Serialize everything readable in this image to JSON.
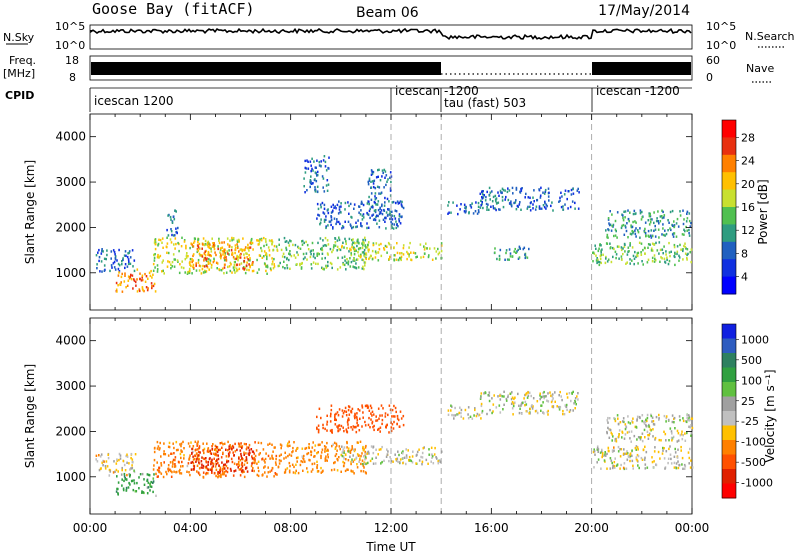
{
  "header": {
    "station": "Goose Bay (fitACF)",
    "beam": "Beam 06",
    "date": "17/May/2014"
  },
  "strip_nsky": {
    "label": "N.Sky",
    "right_label": "N.Search",
    "left_ticks": [
      "10^5",
      "10^0"
    ],
    "right_ticks": [
      "10^5",
      "10^0"
    ]
  },
  "strip_freq": {
    "label_line1": "Freq.",
    "label_line2": "[MHz]",
    "left_ticks": [
      "18",
      "8"
    ],
    "right_ticks": [
      "60",
      "0"
    ],
    "right_label": "Nave"
  },
  "cpid": {
    "label": "CPID",
    "segments": [
      {
        "text": "icescan 1200",
        "start": 0
      },
      {
        "text": "icescan -1200",
        "start": 12
      },
      {
        "text": "tau (fast) 503",
        "start": 14
      },
      {
        "text": "icescan -1200",
        "start": 20
      }
    ]
  },
  "chart_data": [
    {
      "type": "heatmap",
      "panel": "power",
      "ylabel": "Slant Range [km]",
      "yticks": [
        "4000",
        "3000",
        "2000",
        "1000"
      ],
      "ylim": [
        180,
        4500
      ],
      "xlim": [
        0,
        24
      ],
      "colorbar": {
        "label": "Power [dB]",
        "ticks": [
          "28",
          "24",
          "20",
          "16",
          "12",
          "8",
          "4"
        ],
        "colors": [
          "#ff0000",
          "#e83010",
          "#ff8000",
          "#ffc000",
          "#c8e030",
          "#50c050",
          "#2e9c80",
          "#2060c0",
          "#1030e0",
          "#0000ff"
        ]
      },
      "dashed_times": [
        12,
        14,
        20
      ],
      "regions": [
        {
          "t0": 0.2,
          "t1": 1.8,
          "r0": 1050,
          "r1": 1550,
          "level": 8
        },
        {
          "t0": 1.0,
          "t1": 2.6,
          "r0": 600,
          "r1": 1100,
          "level": 22
        },
        {
          "t0": 2.5,
          "t1": 7.5,
          "r0": 1000,
          "r1": 1800,
          "level": 18
        },
        {
          "t0": 4.0,
          "t1": 6.5,
          "r0": 1100,
          "r1": 1700,
          "level": 22
        },
        {
          "t0": 7.5,
          "t1": 11.0,
          "r0": 1100,
          "r1": 1800,
          "level": 14
        },
        {
          "t0": 9.0,
          "t1": 12.5,
          "r0": 2000,
          "r1": 2600,
          "level": 8
        },
        {
          "t0": 10.0,
          "t1": 14.0,
          "r0": 1300,
          "r1": 1700,
          "level": 16
        },
        {
          "t0": 14.2,
          "t1": 15.6,
          "r0": 2300,
          "r1": 2600,
          "level": 6
        },
        {
          "t0": 15.5,
          "t1": 19.5,
          "r0": 2400,
          "r1": 2900,
          "level": 6
        },
        {
          "t0": 16.0,
          "t1": 17.5,
          "r0": 1300,
          "r1": 1600,
          "level": 10
        },
        {
          "t0": 20.0,
          "t1": 24.0,
          "r0": 1200,
          "r1": 1700,
          "level": 12
        },
        {
          "t0": 20.5,
          "t1": 24.0,
          "r0": 1800,
          "r1": 2400,
          "level": 10
        },
        {
          "t0": 3.0,
          "t1": 3.5,
          "r0": 1800,
          "r1": 2400,
          "level": 6
        },
        {
          "t0": 8.5,
          "t1": 9.5,
          "r0": 2800,
          "r1": 3600,
          "level": 6
        },
        {
          "t0": 11.0,
          "t1": 12.0,
          "r0": 2200,
          "r1": 3300,
          "level": 6
        }
      ]
    },
    {
      "type": "heatmap",
      "panel": "velocity",
      "ylabel": "Slant Range [km]",
      "yticks": [
        "4000",
        "3000",
        "2000",
        "1000"
      ],
      "ylim": [
        180,
        4500
      ],
      "xlim": [
        0,
        24
      ],
      "xticks": [
        "00:00",
        "04:00",
        "08:00",
        "12:00",
        "16:00",
        "20:00",
        "00:00"
      ],
      "xlabel": "Time UT",
      "colorbar": {
        "label": "Velocity [m s⁻¹]",
        "ticks": [
          "1000",
          "500",
          "100",
          "25",
          "-25",
          "-100",
          "-500",
          "-1000"
        ],
        "colors": [
          "#1020e0",
          "#2e5cc0",
          "#2e8060",
          "#30a040",
          "#60c040",
          "#a0a0a0",
          "#c0c0c0",
          "#ffc000",
          "#ff8000",
          "#ff5000",
          "#e02000",
          "#ff0000"
        ]
      },
      "dashed_times": [
        12,
        14,
        20
      ],
      "regions": [
        {
          "t0": 0.2,
          "t1": 1.8,
          "r0": 1050,
          "r1": 1550,
          "level": -30
        },
        {
          "t0": 1.0,
          "t1": 2.6,
          "r0": 600,
          "r1": 1100,
          "level": 150
        },
        {
          "t0": 2.5,
          "t1": 7.5,
          "r0": 1000,
          "r1": 1800,
          "level": -150
        },
        {
          "t0": 4.0,
          "t1": 6.5,
          "r0": 1100,
          "r1": 1700,
          "level": -400
        },
        {
          "t0": 7.5,
          "t1": 11.0,
          "r0": 1100,
          "r1": 1800,
          "level": -100
        },
        {
          "t0": 9.0,
          "t1": 12.5,
          "r0": 2000,
          "r1": 2600,
          "level": -300
        },
        {
          "t0": 10.0,
          "t1": 14.0,
          "r0": 1300,
          "r1": 1700,
          "level": 0
        },
        {
          "t0": 14.2,
          "t1": 15.6,
          "r0": 2300,
          "r1": 2600,
          "level": 0
        },
        {
          "t0": 15.5,
          "t1": 19.5,
          "r0": 2400,
          "r1": 2900,
          "level": 0
        },
        {
          "t0": 20.0,
          "t1": 24.0,
          "r0": 1200,
          "r1": 1700,
          "level": 0
        },
        {
          "t0": 20.5,
          "t1": 24.0,
          "r0": 1800,
          "r1": 2400,
          "level": 0
        }
      ]
    }
  ]
}
